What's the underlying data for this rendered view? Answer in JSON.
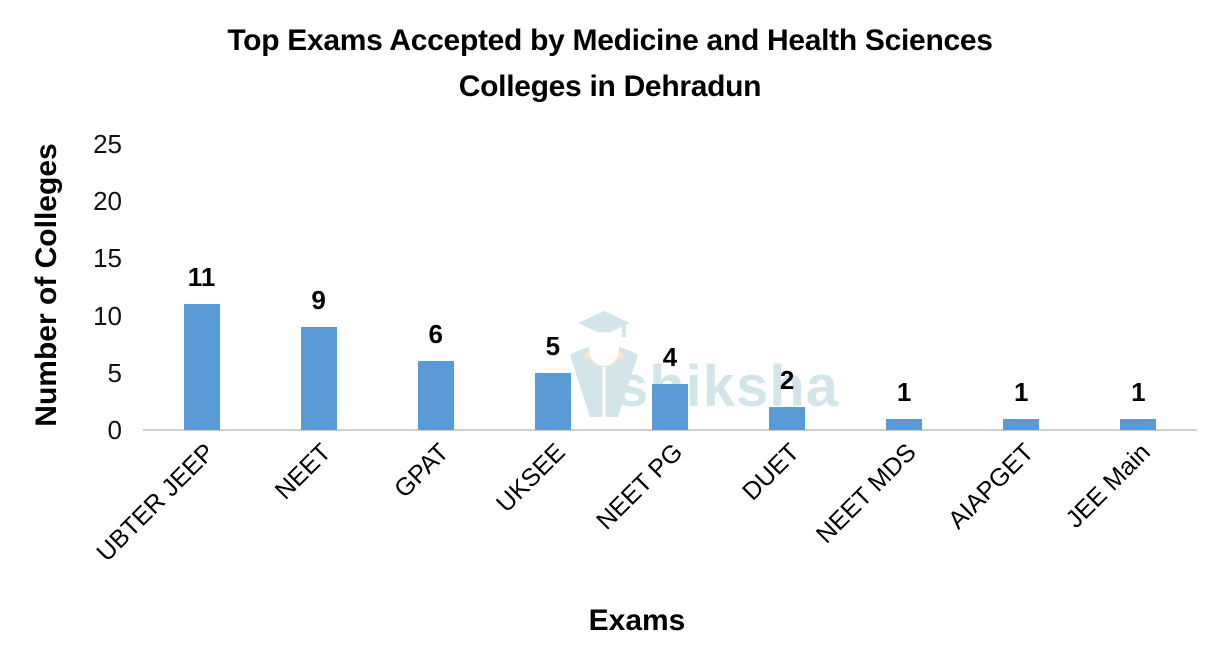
{
  "chart_data": {
    "type": "bar",
    "title": "Top Exams Accepted by Medicine and Health Sciences Colleges in Dehradun",
    "title_lines": [
      "Top Exams Accepted by Medicine and Health Sciences",
      "Colleges in Dehradun"
    ],
    "xlabel": "Exams",
    "ylabel": "Number of Colleges",
    "categories": [
      "UBTER JEEP",
      "NEET",
      "GPAT",
      "UKSEE",
      "NEET PG",
      "DUET",
      "NEET MDS",
      "AIAPGET",
      "JEE Main"
    ],
    "values": [
      11,
      9,
      6,
      5,
      4,
      2,
      1,
      1,
      1
    ],
    "ylim": [
      0,
      25
    ],
    "yticks": [
      "0",
      "5",
      "10",
      "15",
      "20",
      "25"
    ],
    "grid": false,
    "legend": null,
    "data_labels": true,
    "bar_color": "#5b9bd5"
  },
  "watermark": {
    "text": "shiksha"
  }
}
